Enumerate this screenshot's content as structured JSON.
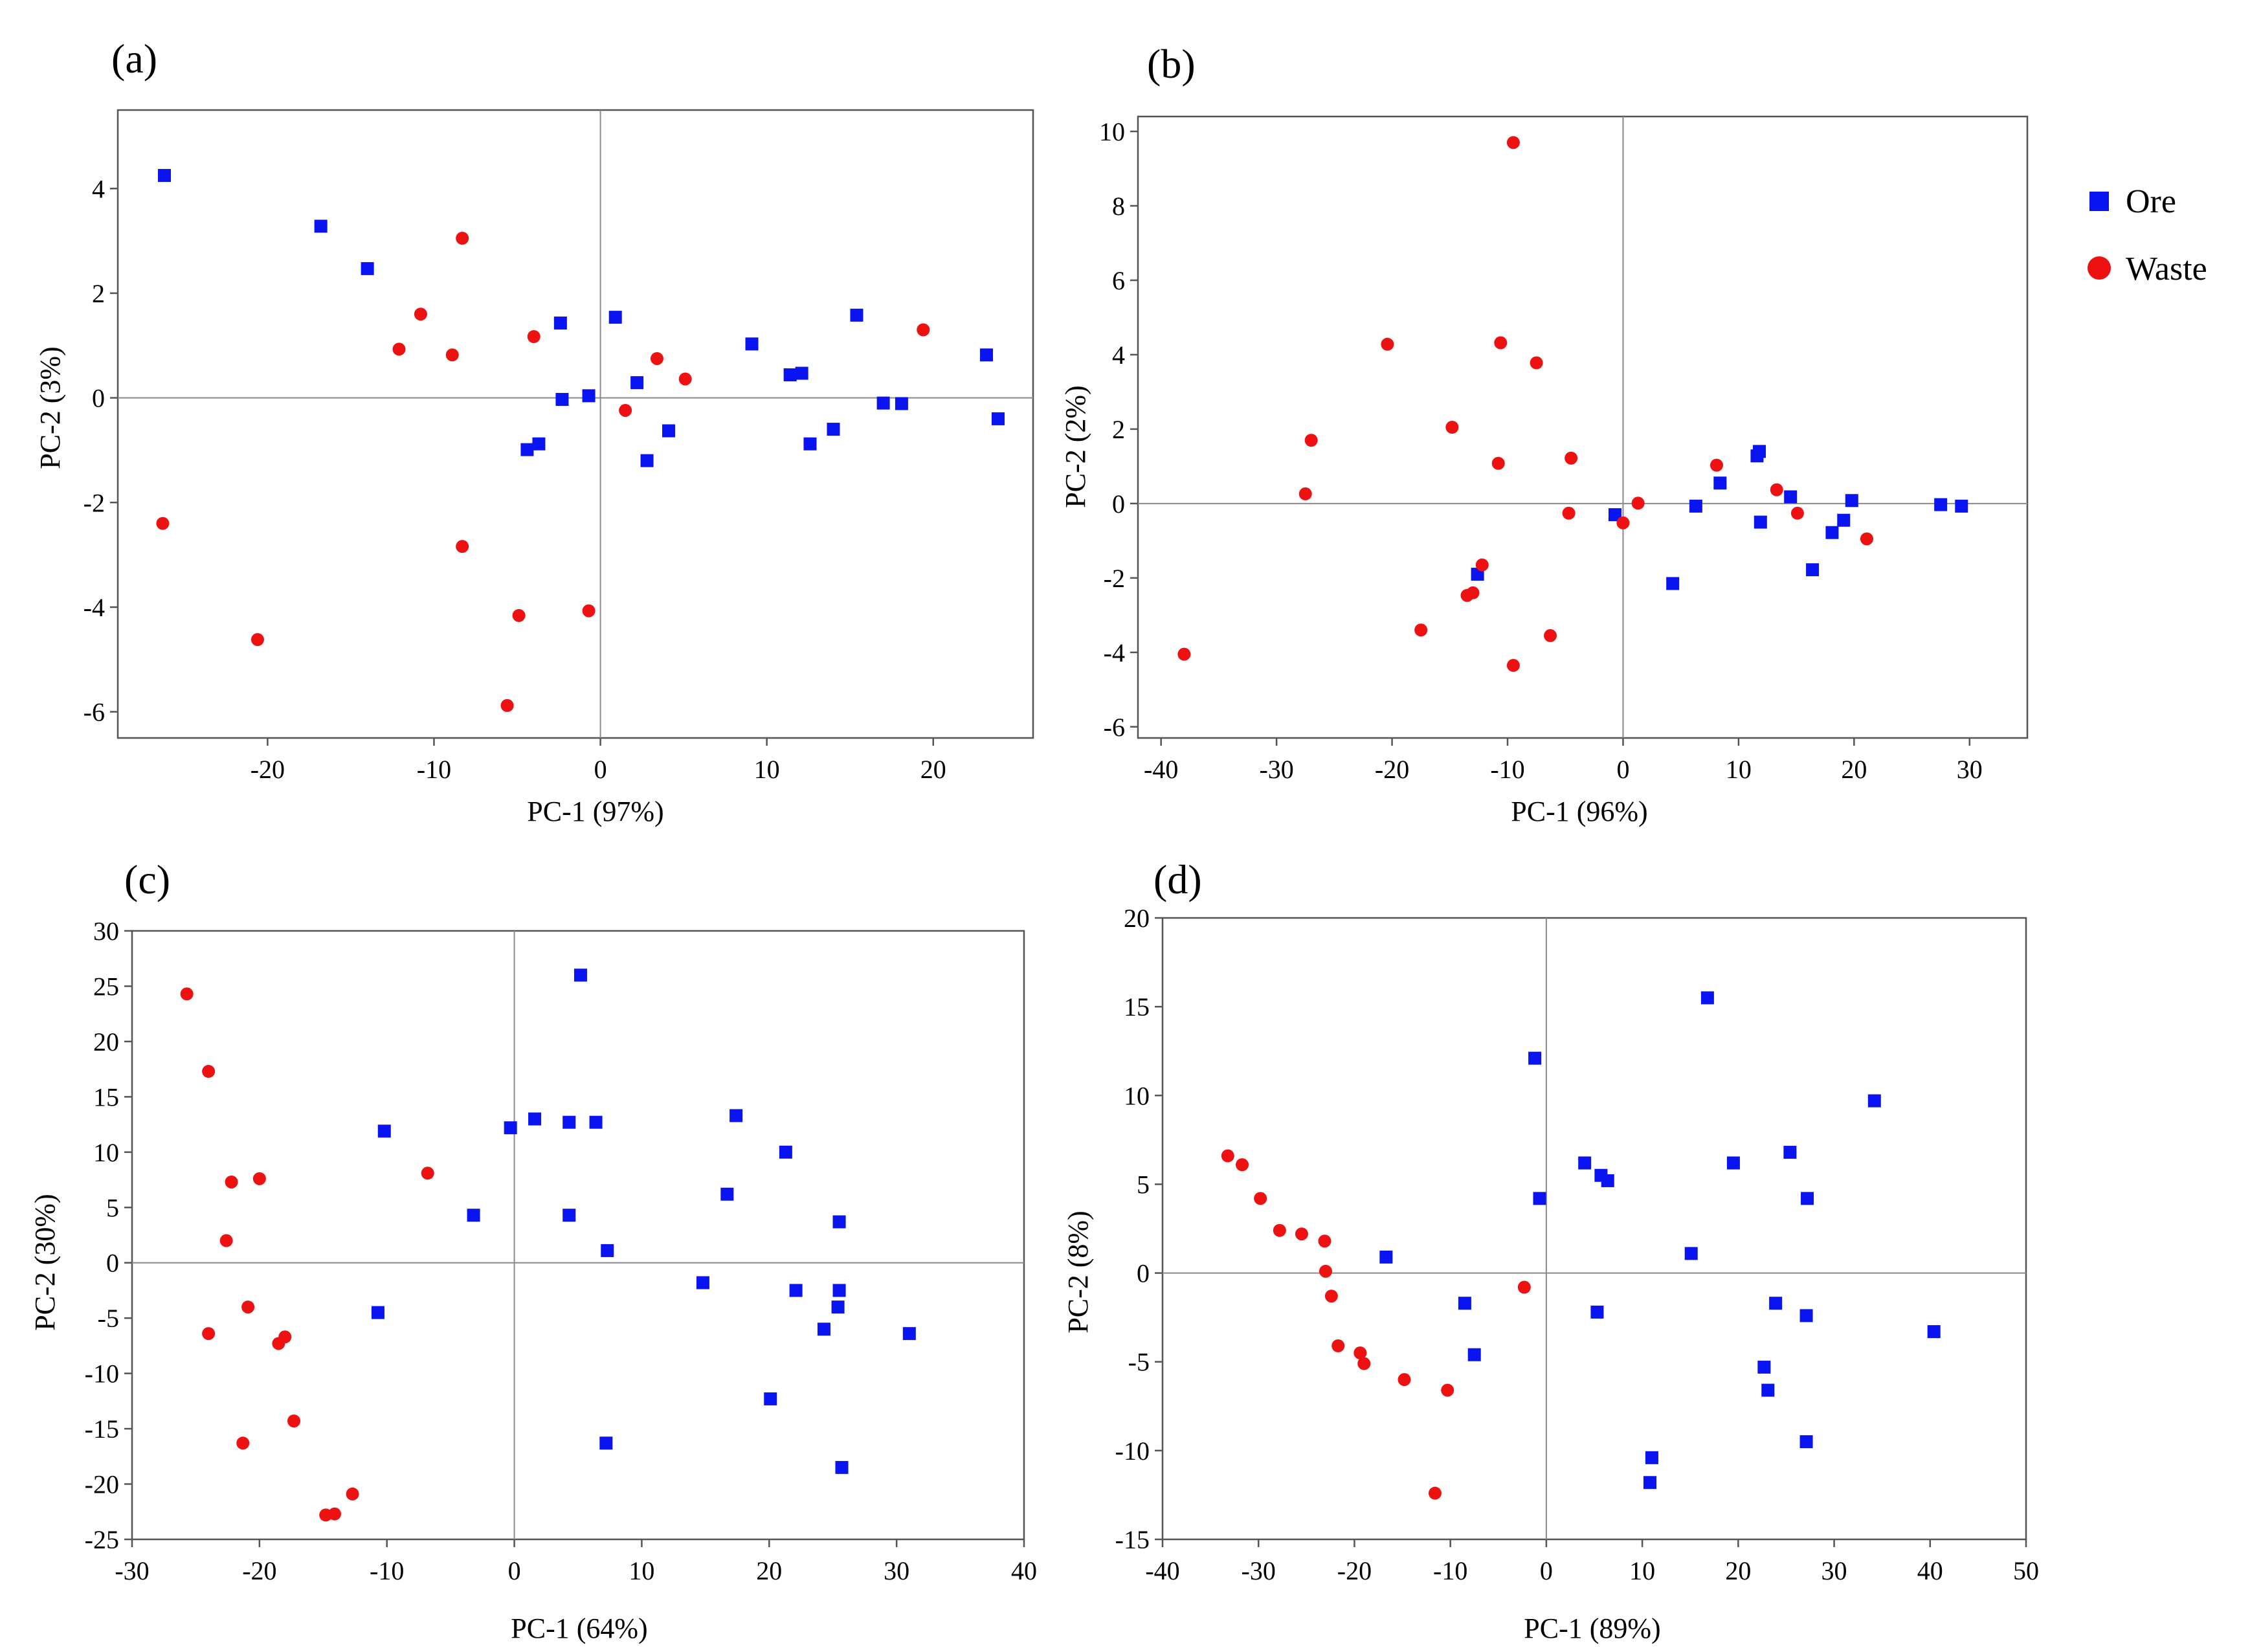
{
  "figure": {
    "legend": [
      {
        "label": "Ore",
        "color": "#0a14f0",
        "shape": "square"
      },
      {
        "label": "Waste",
        "color": "#ee1111",
        "shape": "circle"
      }
    ]
  },
  "chart_data": [
    {
      "id": "a",
      "panel_label": "(a)",
      "type": "scatter",
      "xlabel": "PC-1 (97%)",
      "ylabel": "PC-2 (3%)",
      "xlim": [
        -29,
        26
      ],
      "ylim": [
        -6.5,
        5.5
      ],
      "xticks": [
        -20,
        -10,
        0,
        10,
        20
      ],
      "yticks": [
        -6,
        -4,
        -2,
        0,
        2,
        4
      ],
      "grid": false,
      "series": [
        {
          "name": "Ore",
          "shape": "square",
          "color": "#0a14f0",
          "points": [
            [
              -26.2,
              4.25
            ],
            [
              -16.8,
              3.28
            ],
            [
              -14,
              2.47
            ],
            [
              -2.4,
              1.43
            ],
            [
              0.9,
              1.54
            ],
            [
              15.4,
              1.58
            ],
            [
              9.1,
              1.03
            ],
            [
              11.4,
              0.44
            ],
            [
              12.1,
              0.47
            ],
            [
              23.2,
              0.82
            ],
            [
              2.2,
              0.29
            ],
            [
              -0.7,
              0.04
            ],
            [
              -2.3,
              -0.03
            ],
            [
              17,
              -0.1
            ],
            [
              18.1,
              -0.11
            ],
            [
              23.9,
              -0.4
            ],
            [
              4.1,
              -0.63
            ],
            [
              14,
              -0.6
            ],
            [
              12.6,
              -0.88
            ],
            [
              -3.7,
              -0.88
            ],
            [
              -4.4,
              -0.99
            ],
            [
              2.8,
              -1.2
            ]
          ]
        },
        {
          "name": "Waste",
          "shape": "circle",
          "color": "#ee1111",
          "points": [
            [
              -8.3,
              3.05
            ],
            [
              -10.8,
              1.6
            ],
            [
              -12.1,
              0.93
            ],
            [
              -8.9,
              0.82
            ],
            [
              -4,
              1.17
            ],
            [
              3.4,
              0.75
            ],
            [
              5.1,
              0.36
            ],
            [
              19.4,
              1.3
            ],
            [
              1.5,
              -0.24
            ],
            [
              -26.3,
              -2.4
            ],
            [
              -8.3,
              -2.84
            ],
            [
              -20.6,
              -4.62
            ],
            [
              -4.9,
              -4.16
            ],
            [
              -0.7,
              -4.07
            ],
            [
              -5.6,
              -5.88
            ]
          ]
        }
      ]
    },
    {
      "id": "b",
      "panel_label": "(b)",
      "type": "scatter",
      "xlabel": "PC-1 (96%)",
      "ylabel": "PC-2 (2%)",
      "xlim": [
        -42,
        35
      ],
      "ylim": [
        -6.3,
        10.4
      ],
      "xticks": [
        -40,
        -30,
        -20,
        -10,
        0,
        10,
        20,
        30
      ],
      "yticks": [
        -6,
        -4,
        -2,
        0,
        2,
        4,
        6,
        8,
        10
      ],
      "grid": false,
      "series": [
        {
          "name": "Ore",
          "shape": "square",
          "color": "#0a14f0",
          "points": [
            [
              11.8,
              1.4
            ],
            [
              11.6,
              1.28
            ],
            [
              8.4,
              0.55
            ],
            [
              14.5,
              0.18
            ],
            [
              19.8,
              0.08
            ],
            [
              6.3,
              -0.07
            ],
            [
              27.5,
              -0.03
            ],
            [
              29.3,
              -0.07
            ],
            [
              -0.7,
              -0.3
            ],
            [
              11.9,
              -0.5
            ],
            [
              19.1,
              -0.45
            ],
            [
              18.1,
              -0.78
            ],
            [
              16.4,
              -1.78
            ],
            [
              4.3,
              -2.15
            ],
            [
              -12.6,
              -1.9
            ]
          ]
        },
        {
          "name": "Waste",
          "shape": "circle",
          "color": "#ee1111",
          "points": [
            [
              -9.5,
              9.7
            ],
            [
              -20.4,
              4.28
            ],
            [
              -10.6,
              4.32
            ],
            [
              -7.5,
              3.78
            ],
            [
              -27,
              1.7
            ],
            [
              -14.8,
              2.05
            ],
            [
              -10.8,
              1.08
            ],
            [
              -4.5,
              1.22
            ],
            [
              8.1,
              1.03
            ],
            [
              13.3,
              0.37
            ],
            [
              -27.5,
              0.26
            ],
            [
              1.3,
              0.01
            ],
            [
              -4.7,
              -0.26
            ],
            [
              0,
              -0.52
            ],
            [
              15.1,
              -0.26
            ],
            [
              21.1,
              -0.95
            ],
            [
              -12.2,
              -1.65
            ],
            [
              -13,
              -2.4
            ],
            [
              -13.5,
              -2.47
            ],
            [
              -17.5,
              -3.4
            ],
            [
              -6.3,
              -3.55
            ],
            [
              -9.5,
              -4.35
            ],
            [
              -38,
              -4.05
            ]
          ]
        }
      ]
    },
    {
      "id": "c",
      "panel_label": "(c)",
      "type": "scatter",
      "xlabel": "PC-1 (64%)",
      "ylabel": "PC-2 (30%)",
      "xlim": [
        -30,
        40
      ],
      "ylim": [
        -25,
        30
      ],
      "xticks": [
        -30,
        -20,
        -10,
        0,
        10,
        20,
        30,
        40
      ],
      "yticks": [
        -25,
        -20,
        -15,
        -10,
        -5,
        0,
        5,
        10,
        15,
        20,
        25,
        30
      ],
      "grid": false,
      "series": [
        {
          "name": "Ore",
          "shape": "square",
          "color": "#0a14f0",
          "points": [
            [
              5.2,
              26
            ],
            [
              17.4,
              13.3
            ],
            [
              1.6,
              13
            ],
            [
              4.3,
              12.7
            ],
            [
              6.4,
              12.7
            ],
            [
              -0.3,
              12.2
            ],
            [
              -10.2,
              11.9
            ],
            [
              21.3,
              10
            ],
            [
              16.7,
              6.2
            ],
            [
              -3.2,
              4.3
            ],
            [
              4.3,
              4.3
            ],
            [
              25.5,
              3.7
            ],
            [
              7.3,
              1.1
            ],
            [
              14.8,
              -1.8
            ],
            [
              22.1,
              -2.5
            ],
            [
              25.5,
              -2.5
            ],
            [
              25.4,
              -4
            ],
            [
              -10.7,
              -4.5
            ],
            [
              24.3,
              -6
            ],
            [
              31,
              -6.4
            ],
            [
              20.1,
              -12.3
            ],
            [
              7.2,
              -16.3
            ],
            [
              25.7,
              -18.5
            ]
          ]
        },
        {
          "name": "Waste",
          "shape": "circle",
          "color": "#ee1111",
          "points": [
            [
              -25.7,
              24.3
            ],
            [
              -24,
              17.3
            ],
            [
              -6.8,
              8.1
            ],
            [
              -22.2,
              7.3
            ],
            [
              -20,
              7.6
            ],
            [
              -22.6,
              2
            ],
            [
              -20.9,
              -4
            ],
            [
              -24,
              -6.4
            ],
            [
              -18,
              -6.7
            ],
            [
              -18.5,
              -7.3
            ],
            [
              -17.3,
              -14.3
            ],
            [
              -21.3,
              -16.3
            ],
            [
              -12.7,
              -20.9
            ],
            [
              -14.8,
              -22.8
            ],
            [
              -14.1,
              -22.7
            ]
          ]
        }
      ]
    },
    {
      "id": "d",
      "panel_label": "(d)",
      "type": "scatter",
      "xlabel": "PC-1 (89%)",
      "ylabel": "PC-2 (8%)",
      "xlim": [
        -40,
        50
      ],
      "ylim": [
        -15,
        20
      ],
      "xticks": [
        -40,
        -30,
        -20,
        -10,
        0,
        10,
        20,
        30,
        40,
        50
      ],
      "yticks": [
        -15,
        -10,
        -5,
        0,
        5,
        10,
        15,
        20
      ],
      "grid": false,
      "series": [
        {
          "name": "Ore",
          "shape": "square",
          "color": "#0a14f0",
          "points": [
            [
              16.8,
              15.5
            ],
            [
              -1.2,
              12.1
            ],
            [
              34.2,
              9.7
            ],
            [
              25.4,
              6.8
            ],
            [
              4,
              6.2
            ],
            [
              19.5,
              6.2
            ],
            [
              5.7,
              5.5
            ],
            [
              6.4,
              5.2
            ],
            [
              -0.7,
              4.2
            ],
            [
              27.2,
              4.2
            ],
            [
              -16.7,
              0.9
            ],
            [
              15.1,
              1.1
            ],
            [
              -8.5,
              -1.7
            ],
            [
              23.9,
              -1.7
            ],
            [
              5.3,
              -2.2
            ],
            [
              27.1,
              -2.4
            ],
            [
              -7.5,
              -4.6
            ],
            [
              40.4,
              -3.3
            ],
            [
              22.7,
              -5.3
            ],
            [
              23.1,
              -6.6
            ],
            [
              27.1,
              -9.5
            ],
            [
              11,
              -10.4
            ],
            [
              10.8,
              -11.8
            ]
          ]
        },
        {
          "name": "Waste",
          "shape": "circle",
          "color": "#ee1111",
          "points": [
            [
              -33.2,
              6.6
            ],
            [
              -31.7,
              6.1
            ],
            [
              -29.8,
              4.2
            ],
            [
              -27.8,
              2.4
            ],
            [
              -25.5,
              2.2
            ],
            [
              -23.1,
              1.8
            ],
            [
              -23,
              0.1
            ],
            [
              -22.4,
              -1.3
            ],
            [
              -21.7,
              -4.1
            ],
            [
              -19.4,
              -4.5
            ],
            [
              -19,
              -5.1
            ],
            [
              -14.8,
              -6
            ],
            [
              -10.3,
              -6.6
            ],
            [
              -2.3,
              -0.8
            ],
            [
              -11.6,
              -12.4
            ]
          ]
        }
      ]
    }
  ]
}
